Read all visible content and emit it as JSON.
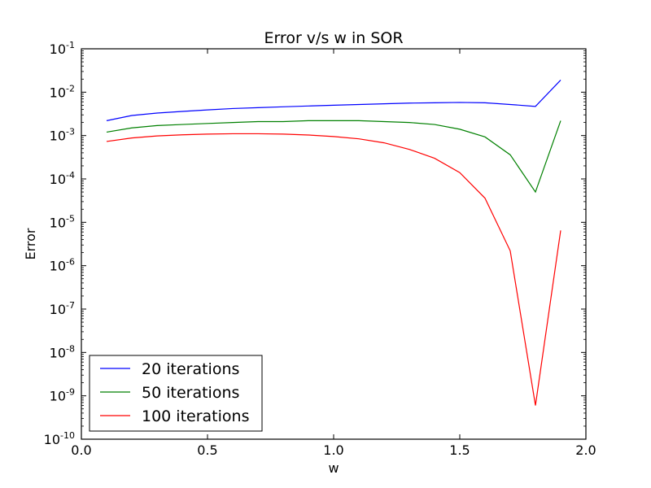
{
  "chart_data": {
    "type": "line",
    "title": "Error v/s w in SOR",
    "xlabel": "w",
    "ylabel": "Error",
    "xlim": [
      0.0,
      2.0
    ],
    "ylim": [
      1e-10,
      0.1
    ],
    "yscale": "log",
    "grid": false,
    "legend_position": "lower-left",
    "x_ticks": [
      0.0,
      0.5,
      1.0,
      1.5,
      2.0
    ],
    "x_tick_labels": [
      "0.0",
      "0.5",
      "1.0",
      "1.5",
      "2.0"
    ],
    "y_ticks": [
      {
        "value": 1e-10,
        "base": "10",
        "exp": "-10"
      },
      {
        "value": 1e-09,
        "base": "10",
        "exp": "-9"
      },
      {
        "value": 1e-08,
        "base": "10",
        "exp": "-8"
      },
      {
        "value": 1e-07,
        "base": "10",
        "exp": "-7"
      },
      {
        "value": 1e-06,
        "base": "10",
        "exp": "-6"
      },
      {
        "value": 1e-05,
        "base": "10",
        "exp": "-5"
      },
      {
        "value": 0.0001,
        "base": "10",
        "exp": "-4"
      },
      {
        "value": 0.001,
        "base": "10",
        "exp": "-3"
      },
      {
        "value": 0.01,
        "base": "10",
        "exp": "-2"
      },
      {
        "value": 0.1,
        "base": "10",
        "exp": "-1"
      }
    ],
    "x": [
      0.1,
      0.2,
      0.3,
      0.4,
      0.5,
      0.6,
      0.7,
      0.8,
      0.9,
      1.0,
      1.1,
      1.2,
      1.3,
      1.4,
      1.5,
      1.6,
      1.7,
      1.8,
      1.9
    ],
    "series": [
      {
        "name": "20 iterations",
        "color": "#0000ff",
        "values": [
          0.0022,
          0.0029,
          0.0033,
          0.0036,
          0.0039,
          0.0042,
          0.0044,
          0.0046,
          0.0048,
          0.005,
          0.0052,
          0.0054,
          0.0056,
          0.0057,
          0.0058,
          0.0057,
          0.0052,
          0.0047,
          0.019
        ]
      },
      {
        "name": "50 iterations",
        "color": "#008000",
        "values": [
          0.0012,
          0.0015,
          0.0017,
          0.0018,
          0.0019,
          0.002,
          0.0021,
          0.0021,
          0.0022,
          0.0022,
          0.0022,
          0.0021,
          0.002,
          0.0018,
          0.0014,
          0.00093,
          0.00036,
          5e-05,
          0.0022
        ]
      },
      {
        "name": "100 iterations",
        "color": "#ff0000",
        "values": [
          0.00073,
          0.00088,
          0.00098,
          0.00104,
          0.00108,
          0.0011,
          0.0011,
          0.00108,
          0.00103,
          0.00095,
          0.00084,
          0.00068,
          0.00048,
          0.0003,
          0.00014,
          3.6e-05,
          2.2e-06,
          6e-10,
          6.5e-06
        ]
      }
    ]
  }
}
